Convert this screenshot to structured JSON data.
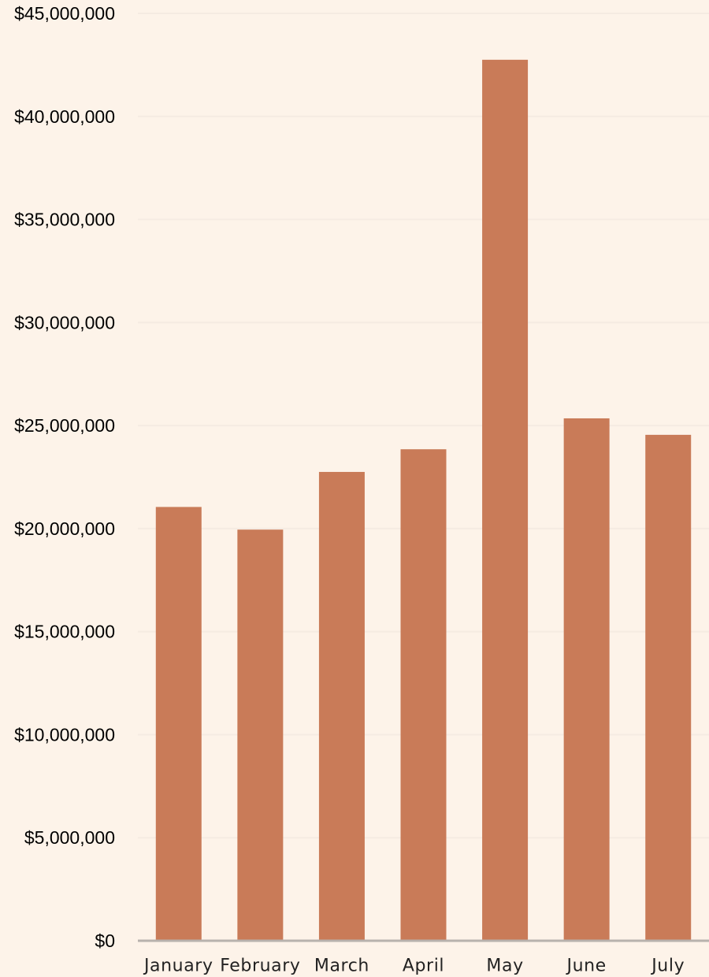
{
  "chart_data": {
    "type": "bar",
    "categories": [
      "January",
      "February",
      "March",
      "April",
      "May",
      "June",
      "July"
    ],
    "values": [
      21050000,
      19950000,
      22750000,
      23850000,
      42750000,
      25350000,
      24550000
    ],
    "ylim": [
      0,
      45000000
    ],
    "yticks": [
      0,
      5000000,
      10000000,
      15000000,
      20000000,
      25000000,
      30000000,
      35000000,
      40000000,
      45000000
    ],
    "ytick_labels": [
      "$0",
      "$5,000,000",
      "$10,000,000",
      "$15,000,000",
      "$20,000,000",
      "$25,000,000",
      "$30,000,000",
      "$35,000,000",
      "$40,000,000",
      "$45,000,000"
    ],
    "grid": true,
    "legend": "none",
    "colors": {
      "background": "#fdf3e9",
      "bar": "#c97b58",
      "grid": "#f5ebe2",
      "axis": "#b8b2ad"
    }
  }
}
